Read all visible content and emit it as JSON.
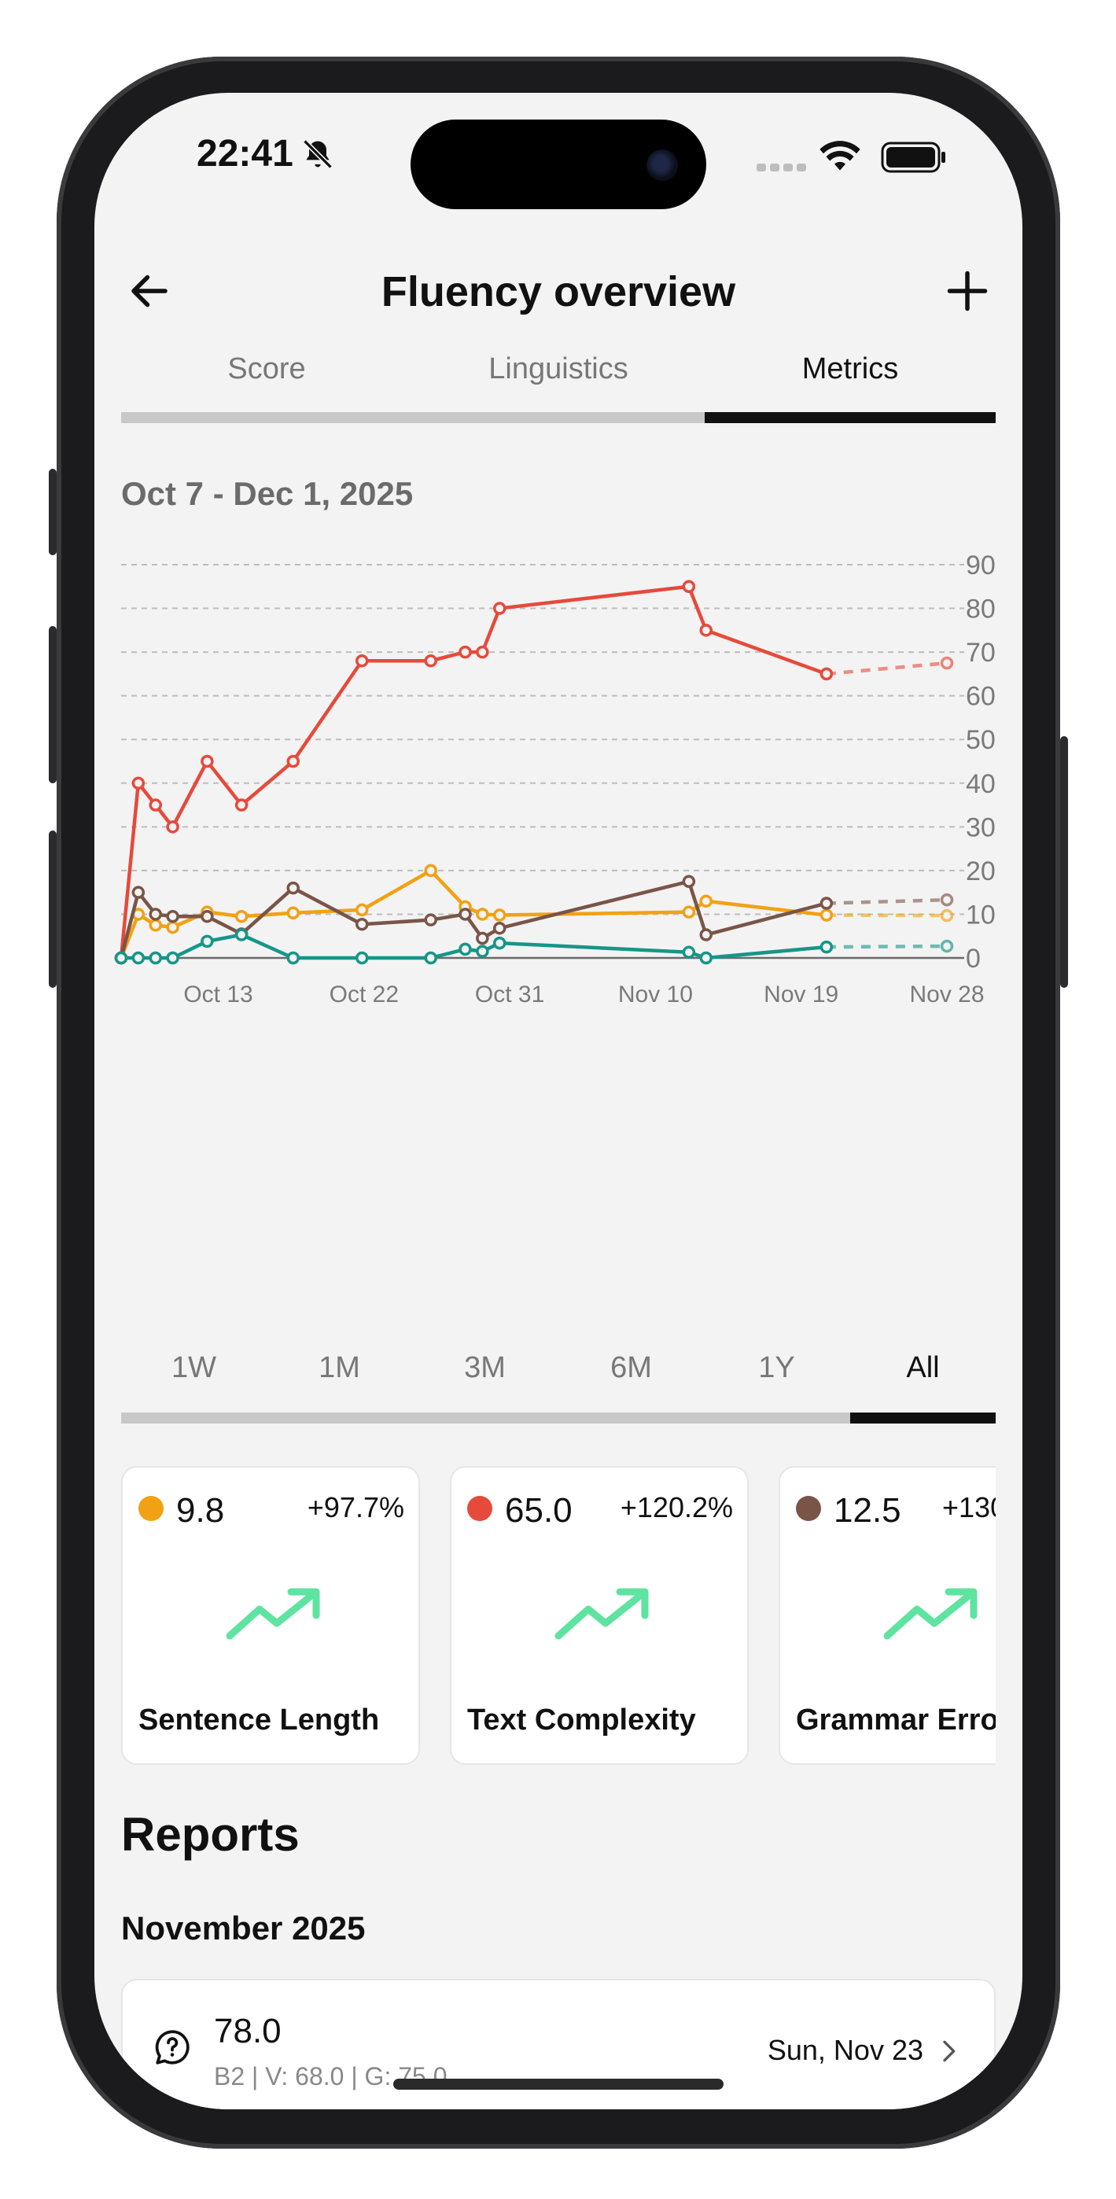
{
  "status": {
    "time": "22:41"
  },
  "header": {
    "title": "Fluency overview",
    "back_icon": "arrow-left-icon",
    "add_icon": "plus-icon"
  },
  "tabs": [
    {
      "label": "Score"
    },
    {
      "label": "Linguistics"
    },
    {
      "label": "Metrics",
      "active": true
    }
  ],
  "date_range": "Oct 7 - Dec 1, 2025",
  "chart_data": {
    "type": "line",
    "x_tick_labels": [
      "Oct 13",
      "Oct 22",
      "Oct 31",
      "Nov 10",
      "Nov 19",
      "Nov 28"
    ],
    "y_tick_labels": [
      "0",
      "10",
      "20",
      "30",
      "40",
      "50",
      "60",
      "70",
      "80",
      "90"
    ],
    "ylim": [
      0,
      90
    ],
    "grid": true,
    "series": [
      {
        "color": "#e64a3b",
        "points": [
          [
            7,
            0
          ],
          [
            8,
            40
          ],
          [
            9,
            35
          ],
          [
            10,
            30
          ],
          [
            12,
            45
          ],
          [
            14,
            35
          ],
          [
            17,
            45
          ],
          [
            21,
            68
          ],
          [
            25,
            68
          ],
          [
            27,
            70
          ],
          [
            28,
            70
          ],
          [
            29,
            80
          ],
          [
            40,
            85
          ],
          [
            41,
            75
          ],
          [
            48,
            65
          ]
        ],
        "projection": [
          [
            48,
            65
          ],
          [
            55,
            67.5
          ]
        ]
      },
      {
        "color": "#f2a114",
        "points": [
          [
            7,
            0
          ],
          [
            8,
            10
          ],
          [
            9,
            7.5
          ],
          [
            10,
            7
          ],
          [
            12,
            10.5
          ],
          [
            14,
            9.5
          ],
          [
            17,
            10.3
          ],
          [
            21,
            11
          ],
          [
            25,
            20
          ],
          [
            27,
            11.7
          ],
          [
            28,
            10
          ],
          [
            29,
            9.8
          ],
          [
            40,
            10.5
          ],
          [
            41,
            13
          ],
          [
            48,
            9.8
          ]
        ],
        "projection": [
          [
            48,
            9.8
          ],
          [
            55,
            9.7
          ]
        ]
      },
      {
        "color": "#795548",
        "points": [
          [
            7,
            0
          ],
          [
            8,
            15
          ],
          [
            9,
            10
          ],
          [
            10,
            9.5
          ],
          [
            12,
            9.5
          ],
          [
            14,
            5.5
          ],
          [
            17,
            16
          ],
          [
            21,
            7.7
          ],
          [
            25,
            8.7
          ],
          [
            27,
            10
          ],
          [
            28,
            4.5
          ],
          [
            29,
            6.8
          ],
          [
            40,
            17.5
          ],
          [
            41,
            5.3
          ],
          [
            48,
            12.5
          ]
        ],
        "projection": [
          [
            48,
            12.5
          ],
          [
            55,
            13.3
          ]
        ]
      },
      {
        "color": "#159688",
        "points": [
          [
            7,
            0
          ],
          [
            8,
            0
          ],
          [
            9,
            0
          ],
          [
            10,
            0
          ],
          [
            12,
            3.8
          ],
          [
            14,
            5.3
          ],
          [
            17,
            0
          ],
          [
            21,
            0
          ],
          [
            25,
            0
          ],
          [
            27,
            2
          ],
          [
            28,
            1.5
          ],
          [
            29,
            3.4
          ],
          [
            40,
            1.3
          ],
          [
            41,
            0
          ],
          [
            48,
            2.5
          ]
        ],
        "projection": [
          [
            48,
            2.5
          ],
          [
            55,
            2.7
          ]
        ]
      }
    ]
  },
  "time_ranges": [
    {
      "label": "1W"
    },
    {
      "label": "1M"
    },
    {
      "label": "3M"
    },
    {
      "label": "6M"
    },
    {
      "label": "1Y"
    },
    {
      "label": "All",
      "active": true
    }
  ],
  "metric_cards": [
    {
      "color": "#f2a114",
      "value": "9.8",
      "change": "+97.7%",
      "label": "Sentence Length",
      "icon": "trending-up-icon"
    },
    {
      "color": "#e64a3b",
      "value": "65.0",
      "change": "+120.2%",
      "label": "Text Complexity",
      "icon": "trending-up-icon"
    },
    {
      "color": "#795548",
      "value": "12.5",
      "change": "+130",
      "label": "Grammar Erro",
      "icon": "trending-up-icon"
    }
  ],
  "reports": {
    "title": "Reports",
    "month": "November 2025",
    "items": [
      {
        "score": "78.0",
        "details": "B2 | V: 68.0 | G: 75.0",
        "date": "Sun, Nov 23",
        "icon": "chat-question-icon"
      }
    ]
  }
}
